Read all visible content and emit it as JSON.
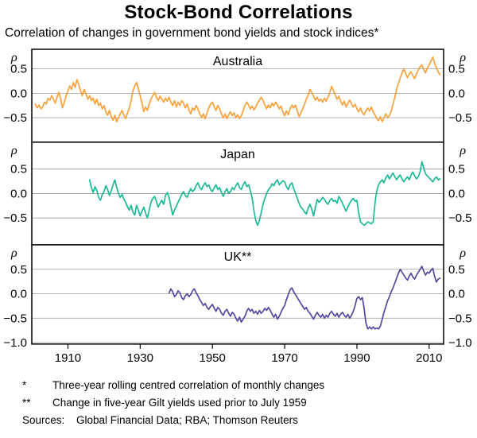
{
  "title": "Stock-Bond Correlations",
  "subtitle": "Correlation of changes in government bond yields and stock indices*",
  "footnotes": [
    {
      "marker": "*",
      "text": "Three-year rolling centred correlation of monthly changes"
    },
    {
      "marker": "**",
      "text": "Change in five-year Gilt yields used prior to July 1959"
    }
  ],
  "sources": {
    "label": "Sources:",
    "text": "Global Financial Data; RBA; Thomson Reuters"
  },
  "chart_data": {
    "type": "line",
    "title": "Stock-Bond Correlations",
    "y_unit": "ρ",
    "grid": true,
    "x_axis": {
      "min": 1900,
      "max": 2014,
      "ticks": [
        1910,
        1930,
        1950,
        1970,
        1990,
        2010
      ],
      "tick_labels": [
        "1910",
        "1930",
        "1950",
        "1970",
        "1990",
        "2010"
      ]
    },
    "panels": [
      {
        "title": "Australia",
        "ylim": [
          -1.0,
          0.9
        ],
        "yticks": [
          0.5,
          0.0,
          -0.5
        ],
        "ytick_labels": [
          "0.5",
          "0.0",
          "−0.5"
        ],
        "series": {
          "name": "Australia",
          "color": "#F9A13B",
          "start": 1901,
          "step": 0.5,
          "values": [
            -0.22,
            -0.3,
            -0.24,
            -0.32,
            -0.28,
            -0.18,
            -0.22,
            -0.1,
            -0.14,
            -0.05,
            -0.12,
            -0.2,
            -0.08,
            0.02,
            -0.12,
            -0.3,
            -0.18,
            -0.05,
            0.05,
            0.15,
            0.08,
            0.22,
            0.12,
            0.28,
            0.18,
            0.05,
            -0.05,
            0.08,
            -0.02,
            -0.12,
            -0.05,
            -0.15,
            -0.1,
            -0.22,
            -0.12,
            -0.25,
            -0.2,
            -0.32,
            -0.25,
            -0.38,
            -0.45,
            -0.35,
            -0.48,
            -0.55,
            -0.45,
            -0.58,
            -0.5,
            -0.42,
            -0.35,
            -0.45,
            -0.52,
            -0.4,
            -0.3,
            -0.15,
            0.05,
            0.15,
            0.22,
            0.1,
            -0.05,
            -0.2,
            -0.38,
            -0.28,
            -0.35,
            -0.22,
            -0.12,
            -0.05,
            0.02,
            -0.08,
            -0.15,
            -0.06,
            -0.12,
            -0.18,
            -0.1,
            -0.16,
            -0.08,
            -0.18,
            -0.25,
            -0.15,
            -0.28,
            -0.18,
            -0.25,
            -0.15,
            -0.2,
            -0.3,
            -0.22,
            -0.35,
            -0.42,
            -0.3,
            -0.35,
            -0.25,
            -0.32,
            -0.42,
            -0.5,
            -0.42,
            -0.52,
            -0.4,
            -0.3,
            -0.22,
            -0.18,
            -0.28,
            -0.35,
            -0.25,
            -0.32,
            -0.42,
            -0.5,
            -0.42,
            -0.52,
            -0.44,
            -0.38,
            -0.46,
            -0.4,
            -0.5,
            -0.44,
            -0.52,
            -0.46,
            -0.36,
            -0.25,
            -0.18,
            -0.24,
            -0.32,
            -0.26,
            -0.34,
            -0.28,
            -0.2,
            -0.14,
            -0.08,
            -0.14,
            -0.24,
            -0.32,
            -0.24,
            -0.3,
            -0.2,
            -0.26,
            -0.18,
            -0.24,
            -0.32,
            -0.26,
            -0.38,
            -0.46,
            -0.36,
            -0.44,
            -0.32,
            -0.24,
            -0.3,
            -0.24,
            -0.36,
            -0.48,
            -0.4,
            -0.32,
            -0.22,
            -0.12,
            -0.04,
            0.08,
            0.02,
            -0.06,
            -0.14,
            -0.08,
            -0.16,
            -0.12,
            -0.18,
            -0.1,
            -0.16,
            -0.08,
            0.02,
            0.14,
            0.06,
            -0.04,
            -0.12,
            -0.06,
            -0.16,
            -0.24,
            -0.16,
            -0.28,
            -0.2,
            -0.14,
            -0.22,
            -0.28,
            -0.22,
            -0.32,
            -0.38,
            -0.3,
            -0.4,
            -0.44,
            -0.36,
            -0.3,
            -0.36,
            -0.28,
            -0.38,
            -0.44,
            -0.52,
            -0.56,
            -0.48,
            -0.58,
            -0.5,
            -0.42,
            -0.5,
            -0.46,
            -0.36,
            -0.22,
            -0.08,
            0.08,
            0.2,
            0.32,
            0.42,
            0.5,
            0.4,
            0.32,
            0.4,
            0.44,
            0.36,
            0.3,
            0.4,
            0.48,
            0.54,
            0.58,
            0.48,
            0.42,
            0.52,
            0.58,
            0.66,
            0.74,
            0.62,
            0.52,
            0.44,
            0.38
          ]
        }
      },
      {
        "title": "Japan",
        "ylim": [
          -1.05,
          1.05
        ],
        "yticks": [
          0.5,
          0.0,
          -0.5
        ],
        "ytick_labels": [
          "0.5",
          "0.0",
          "−0.5"
        ],
        "series": {
          "name": "Japan",
          "color": "#1EB898",
          "start": 1916,
          "step": 0.5,
          "values": [
            0.28,
            0.12,
            0.02,
            0.14,
            0.06,
            -0.08,
            -0.14,
            -0.02,
            0.04,
            0.16,
            0.08,
            -0.04,
            0.06,
            0.18,
            0.28,
            0.12,
            0.0,
            -0.08,
            -0.02,
            -0.12,
            -0.18,
            -0.28,
            -0.34,
            -0.24,
            -0.38,
            -0.44,
            -0.24,
            -0.34,
            -0.46,
            -0.36,
            -0.28,
            -0.4,
            -0.5,
            -0.34,
            -0.18,
            -0.1,
            -0.06,
            -0.16,
            -0.28,
            -0.2,
            -0.14,
            -0.22,
            -0.04,
            0.02,
            -0.08,
            -0.26,
            -0.44,
            -0.34,
            -0.26,
            -0.18,
            -0.1,
            -0.02,
            0.04,
            -0.04,
            -0.08,
            0.02,
            0.1,
            0.04,
            0.08,
            0.16,
            0.22,
            0.12,
            0.08,
            0.16,
            0.22,
            0.14,
            0.18,
            0.08,
            0.04,
            0.12,
            0.18,
            0.08,
            0.12,
            0.02,
            -0.06,
            0.04,
            0.1,
            0.0,
            0.04,
            0.12,
            0.08,
            0.16,
            0.22,
            0.12,
            0.08,
            0.18,
            0.24,
            0.14,
            0.18,
            0.06,
            -0.1,
            -0.35,
            -0.55,
            -0.65,
            -0.55,
            -0.4,
            -0.22,
            -0.1,
            0.0,
            0.08,
            0.12,
            0.2,
            0.16,
            0.24,
            0.28,
            0.18,
            0.22,
            0.26,
            0.24,
            0.14,
            0.08,
            0.18,
            0.22,
            0.1,
            0.0,
            -0.1,
            -0.2,
            -0.28,
            -0.32,
            -0.38,
            -0.42,
            -0.3,
            -0.22,
            -0.32,
            -0.46,
            -0.28,
            -0.12,
            -0.18,
            -0.14,
            -0.08,
            -0.12,
            -0.18,
            -0.22,
            -0.14,
            -0.1,
            -0.16,
            -0.14,
            -0.2,
            -0.06,
            -0.12,
            -0.2,
            -0.28,
            -0.36,
            -0.28,
            -0.2,
            -0.14,
            -0.1,
            -0.16,
            -0.14,
            -0.4,
            -0.58,
            -0.62,
            -0.65,
            -0.62,
            -0.58,
            -0.6,
            -0.62,
            -0.58,
            -0.2,
            0.05,
            0.18,
            0.24,
            0.28,
            0.22,
            0.32,
            0.38,
            0.3,
            0.36,
            0.42,
            0.34,
            0.28,
            0.34,
            0.38,
            0.3,
            0.24,
            0.3,
            0.34,
            0.28,
            0.38,
            0.44,
            0.36,
            0.3,
            0.34,
            0.45,
            0.65,
            0.52,
            0.4,
            0.36,
            0.32,
            0.28,
            0.24,
            0.3,
            0.34,
            0.28,
            0.3
          ]
        }
      },
      {
        "title": "UK**",
        "ylim": [
          -1.03,
          1.0
        ],
        "yticks": [
          0.5,
          0.0,
          -0.5,
          -1.0
        ],
        "ytick_labels": [
          "0.5",
          "0.0",
          "−0.5",
          "−1.0"
        ],
        "series": {
          "name": "UK",
          "color": "#54499E",
          "start": 1938,
          "step": 0.5,
          "values": [
            0.02,
            0.1,
            0.04,
            -0.06,
            -0.02,
            0.06,
            0.02,
            -0.08,
            -0.12,
            -0.04,
            0.0,
            -0.06,
            -0.02,
            0.06,
            0.1,
            0.02,
            -0.04,
            -0.12,
            -0.18,
            -0.24,
            -0.2,
            -0.28,
            -0.32,
            -0.26,
            -0.22,
            -0.3,
            -0.36,
            -0.28,
            -0.32,
            -0.4,
            -0.44,
            -0.36,
            -0.32,
            -0.4,
            -0.46,
            -0.38,
            -0.42,
            -0.5,
            -0.56,
            -0.48,
            -0.58,
            -0.52,
            -0.46,
            -0.36,
            -0.3,
            -0.36,
            -0.32,
            -0.4,
            -0.36,
            -0.42,
            -0.34,
            -0.4,
            -0.36,
            -0.3,
            -0.34,
            -0.28,
            -0.34,
            -0.42,
            -0.48,
            -0.42,
            -0.52,
            -0.46,
            -0.38,
            -0.3,
            -0.24,
            -0.12,
            -0.02,
            0.08,
            0.12,
            0.04,
            -0.02,
            -0.08,
            -0.14,
            -0.2,
            -0.26,
            -0.32,
            -0.28,
            -0.36,
            -0.4,
            -0.46,
            -0.52,
            -0.44,
            -0.38,
            -0.44,
            -0.48,
            -0.42,
            -0.5,
            -0.44,
            -0.48,
            -0.4,
            -0.36,
            -0.42,
            -0.46,
            -0.4,
            -0.48,
            -0.42,
            -0.38,
            -0.44,
            -0.48,
            -0.42,
            -0.5,
            -0.44,
            -0.36,
            -0.24,
            -0.1,
            -0.06,
            -0.12,
            -0.08,
            -0.3,
            -0.6,
            -0.72,
            -0.68,
            -0.72,
            -0.68,
            -0.72,
            -0.7,
            -0.72,
            -0.66,
            -0.52,
            -0.38,
            -0.26,
            -0.14,
            -0.06,
            0.04,
            0.12,
            0.22,
            0.32,
            0.42,
            0.5,
            0.44,
            0.38,
            0.32,
            0.28,
            0.36,
            0.42,
            0.34,
            0.3,
            0.38,
            0.44,
            0.5,
            0.56,
            0.46,
            0.38,
            0.44,
            0.42,
            0.48,
            0.52,
            0.36,
            0.24,
            0.3,
            0.32
          ]
        }
      }
    ]
  }
}
